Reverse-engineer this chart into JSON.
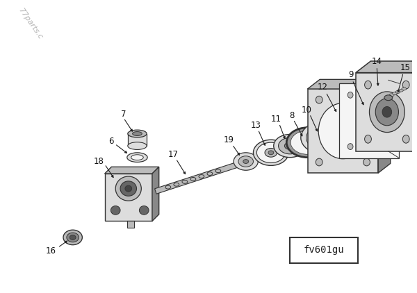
{
  "background_color": "#ffffff",
  "fig_width": 6.0,
  "fig_height": 4.22,
  "watermark_text": "77parts.c",
  "watermark_color": "#aaaaaa",
  "watermark_rotation": -55,
  "watermark_fontsize": 8,
  "label_color": "#111111",
  "label_fontsize": 8.5,
  "arrow_color": "#222222",
  "line_color": "#333333",
  "face_light": "#dddddd",
  "face_mid": "#bbbbbb",
  "face_dark": "#888888",
  "face_white": "#f5f5f5"
}
